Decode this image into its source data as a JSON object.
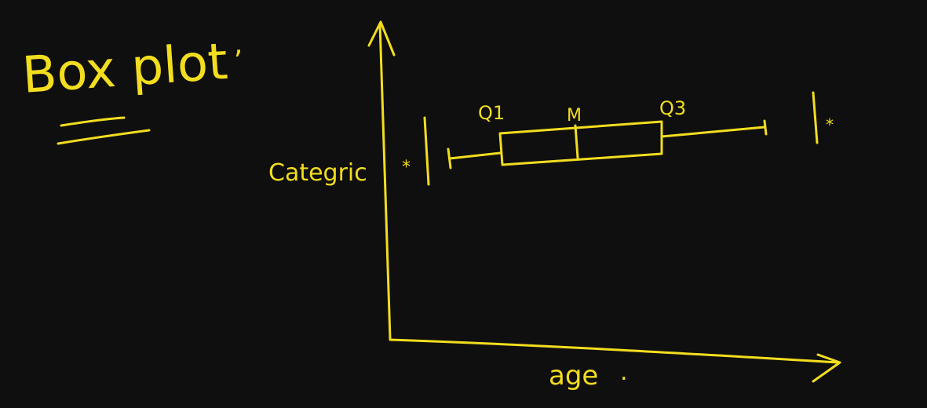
{
  "theme": {
    "background": "#0f0f0f",
    "ink": "#f2dd1f"
  },
  "title": "Box plot",
  "title_punct": ",",
  "y_axis_label": "Categric",
  "x_axis_label": "age",
  "x_axis_label_dot": ".",
  "labels": {
    "q1": "Q1",
    "median": "M",
    "q3": "Q3"
  },
  "outlier_marker": "*"
}
